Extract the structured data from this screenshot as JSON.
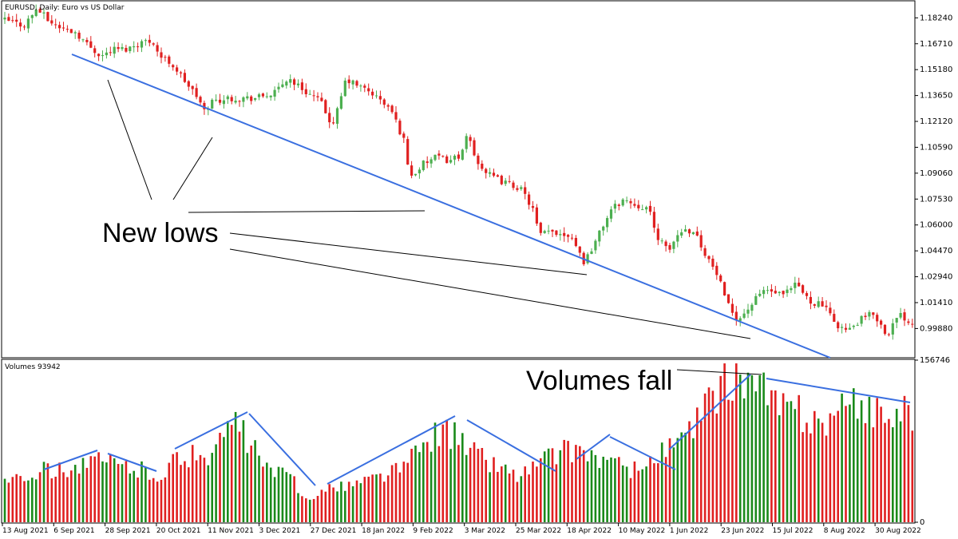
{
  "chart_data": [
    {
      "type": "candlestick",
      "title": "EURUSD, Daily:  Euro vs US Dollar",
      "ylim": [
        0.982,
        1.192
      ],
      "yticks": [
        "1.18240",
        "1.16710",
        "1.15180",
        "1.13650",
        "1.12120",
        "1.10590",
        "1.09060",
        "1.07530",
        "1.06000",
        "1.04470",
        "1.02940",
        "1.01410",
        "0.99880"
      ],
      "colors": {
        "up": "#4CAF50",
        "down": "#E02020",
        "trendline": "#3A6FE0",
        "annotation": "#000000"
      },
      "price_path": [
        [
          0,
          1.181
        ],
        [
          6,
          1.178
        ],
        [
          10,
          1.188
        ],
        [
          14,
          1.18
        ],
        [
          18,
          1.176
        ],
        [
          22,
          1.174
        ],
        [
          26,
          1.166
        ],
        [
          30,
          1.16
        ],
        [
          34,
          1.164
        ],
        [
          38,
          1.164
        ],
        [
          42,
          1.168
        ],
        [
          46,
          1.169
        ],
        [
          48,
          1.16
        ],
        [
          52,
          1.155
        ],
        [
          56,
          1.145
        ],
        [
          60,
          1.135
        ],
        [
          62,
          1.127
        ],
        [
          64,
          1.133
        ],
        [
          70,
          1.135
        ],
        [
          78,
          1.135
        ],
        [
          84,
          1.138
        ],
        [
          88,
          1.147
        ],
        [
          92,
          1.141
        ],
        [
          98,
          1.133
        ],
        [
          102,
          1.118
        ],
        [
          106,
          1.146
        ],
        [
          110,
          1.142
        ],
        [
          114,
          1.138
        ],
        [
          120,
          1.128
        ],
        [
          124,
          1.11
        ],
        [
          126,
          1.088
        ],
        [
          130,
          1.096
        ],
        [
          134,
          1.1
        ],
        [
          138,
          1.098
        ],
        [
          142,
          1.102
        ],
        [
          144,
          1.114
        ],
        [
          146,
          1.1
        ],
        [
          150,
          1.09
        ],
        [
          154,
          1.086
        ],
        [
          160,
          1.082
        ],
        [
          164,
          1.07
        ],
        [
          166,
          1.054
        ],
        [
          170,
          1.056
        ],
        [
          176,
          1.054
        ],
        [
          180,
          1.038
        ],
        [
          184,
          1.052
        ],
        [
          188,
          1.068
        ],
        [
          192,
          1.075
        ],
        [
          196,
          1.072
        ],
        [
          200,
          1.07
        ],
        [
          202,
          1.056
        ],
        [
          206,
          1.044
        ],
        [
          210,
          1.057
        ],
        [
          214,
          1.057
        ],
        [
          218,
          1.042
        ],
        [
          222,
          1.028
        ],
        [
          224,
          1.014
        ],
        [
          228,
          1.004
        ],
        [
          232,
          1.013
        ],
        [
          236,
          1.022
        ],
        [
          242,
          1.018
        ],
        [
          246,
          1.025
        ],
        [
          250,
          1.015
        ],
        [
          254,
          1.013
        ],
        [
          258,
          1.002
        ],
        [
          262,
          0.997
        ],
        [
          266,
          1.004
        ],
        [
          270,
          1.008
        ],
        [
          274,
          0.995
        ],
        [
          278,
          1.007
        ],
        [
          282,
          1.002
        ]
      ]
    },
    {
      "type": "bar",
      "title": "Volumes 93942",
      "ylim": [
        0,
        156746
      ],
      "yticks": [
        "156746",
        "0"
      ],
      "colors": {
        "up": "#1A8A1A",
        "down": "#E02020",
        "trendline": "#3A6FE0"
      },
      "volume_profile": [
        [
          0,
          47000
        ],
        [
          12,
          52000
        ],
        [
          24,
          58000
        ],
        [
          28,
          61000
        ],
        [
          34,
          60000
        ],
        [
          36,
          58000
        ],
        [
          44,
          52000
        ],
        [
          50,
          48000
        ],
        [
          52,
          62000
        ],
        [
          66,
          72000
        ],
        [
          70,
          102000
        ],
        [
          72,
          98000
        ],
        [
          82,
          52000
        ],
        [
          90,
          44000
        ],
        [
          92,
          25000
        ],
        [
          96,
          28000
        ],
        [
          104,
          36000
        ],
        [
          112,
          42000
        ],
        [
          124,
          56000
        ],
        [
          134,
          92000
        ],
        [
          138,
          90000
        ],
        [
          150,
          62000
        ],
        [
          160,
          47000
        ],
        [
          170,
          68000
        ],
        [
          176,
          74000
        ],
        [
          178,
          76000
        ],
        [
          182,
          68000
        ],
        [
          190,
          58000
        ],
        [
          196,
          52000
        ],
        [
          198,
          56000
        ],
        [
          206,
          74000
        ],
        [
          214,
          92000
        ],
        [
          220,
          126000
        ],
        [
          224,
          140000
        ],
        [
          226,
          148000
        ],
        [
          228,
          150000
        ],
        [
          232,
          142000
        ],
        [
          240,
          118000
        ],
        [
          248,
          108000
        ],
        [
          254,
          102000
        ],
        [
          260,
          112000
        ],
        [
          266,
          118000
        ],
        [
          270,
          116000
        ],
        [
          276,
          108000
        ],
        [
          282,
          110000
        ]
      ],
      "x_tick_labels": [
        "13 Aug 2021",
        "6 Sep 2021",
        "28 Sep 2021",
        "20 Oct 2021",
        "11 Nov 2021",
        "3 Dec 2021",
        "27 Dec 2021",
        "18 Jan 2022",
        "9 Feb 2022",
        "3 Mar 2022",
        "25 Mar 2022",
        "18 Apr 2022",
        "10 May 2022",
        "1 Jun 2022",
        "23 Jun 2022",
        "15 Jul 2022",
        "8 Aug 2022",
        "30 Aug 2022"
      ]
    }
  ],
  "annotations": {
    "new_lows": "New lows",
    "volumes_fall": "Volumes fall"
  }
}
